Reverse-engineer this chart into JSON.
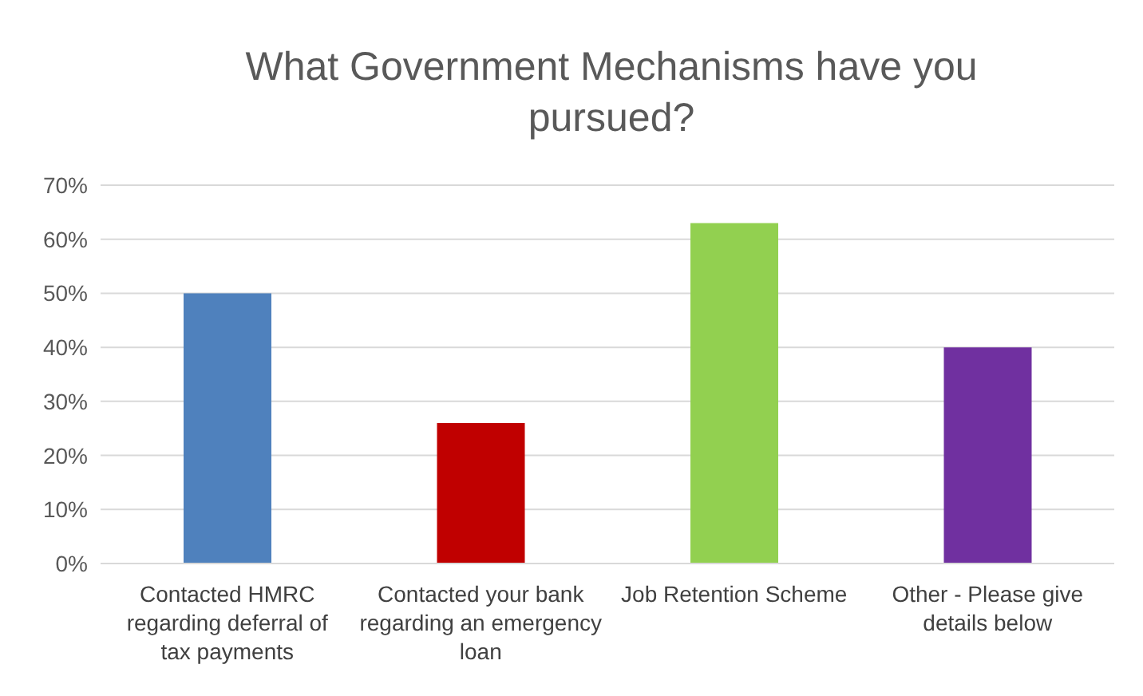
{
  "chart_data": {
    "type": "bar",
    "title": "What Government Mechanisms have you pursued?",
    "categories": [
      "Contacted HMRC regarding deferral of tax payments",
      "Contacted your bank regarding an emergency loan",
      "Job Retention Scheme",
      "Other - Please give details below"
    ],
    "values": [
      50,
      26,
      63,
      40
    ],
    "colors": [
      "#4f81bd",
      "#c00000",
      "#92d050",
      "#7030a0"
    ],
    "ylim": [
      0,
      70
    ],
    "yticks": [
      {
        "value": 0,
        "label": "0%"
      },
      {
        "value": 10,
        "label": "10%"
      },
      {
        "value": 20,
        "label": "20%"
      },
      {
        "value": 30,
        "label": "30%"
      },
      {
        "value": 40,
        "label": "40%"
      },
      {
        "value": 50,
        "label": "50%"
      },
      {
        "value": 60,
        "label": "60%"
      },
      {
        "value": 70,
        "label": "70%"
      }
    ],
    "grid": "y"
  }
}
